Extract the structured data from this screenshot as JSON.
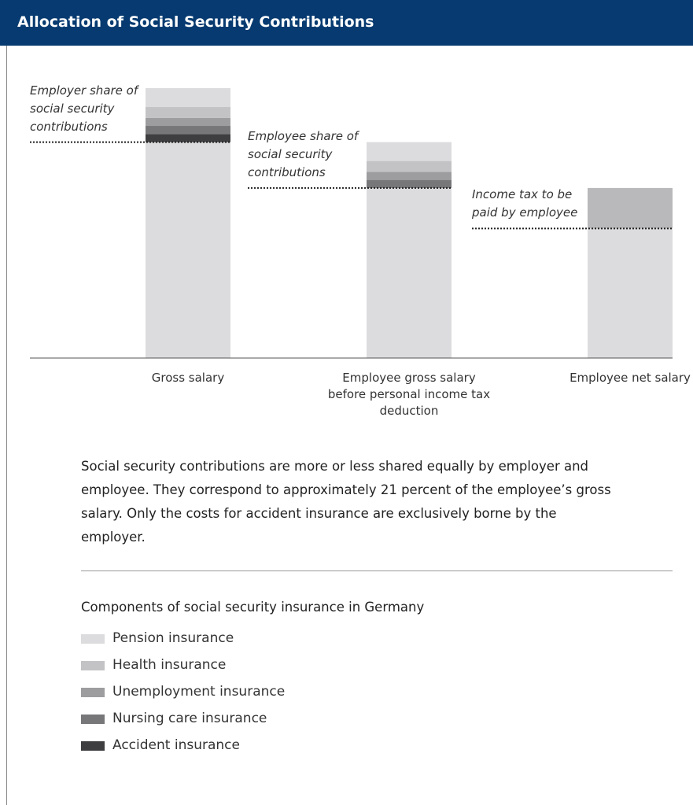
{
  "header": {
    "title": "Allocation of Social Security Contributions"
  },
  "chart_data": {
    "type": "stacked_bar",
    "categories": [
      "Gross salary",
      "Employee gross salary before personal income tax deduction",
      "Employee net salary"
    ],
    "series": [
      {
        "color": "#dcdcde",
        "values": [
          80,
          63,
          48
        ]
      },
      {
        "name": "Accident insurance",
        "color": "#3e3e40",
        "values": [
          3,
          null,
          null
        ]
      },
      {
        "name": "Nursing care insurance",
        "color": "#77777a",
        "values": [
          3,
          3,
          null
        ]
      },
      {
        "name": "Unemployment insurance",
        "color": "#9d9d9f",
        "values": [
          3,
          3,
          null
        ]
      },
      {
        "name": "Health insurance",
        "color": "#c3c3c5",
        "values": [
          4,
          4,
          null
        ]
      },
      {
        "name": "Pension insurance",
        "color": "#dcdcde",
        "values": [
          7,
          7,
          null
        ]
      },
      {
        "color": "#b9b9bc",
        "values": [
          null,
          null,
          15
        ]
      }
    ],
    "annotations": [
      "Employer share of social security contributions",
      "Employee share of social security contributions",
      "Income tax to be paid by employee"
    ],
    "legend_title": "Components of social security insurance in Germany"
  },
  "text": {
    "paragraph": "Social security contributions are more or less shared equally by employer and employee. They correspond to approximately 21 percent of the employee’s gross salary. Only the costs for accident insurance are exclusively borne by the employer."
  }
}
